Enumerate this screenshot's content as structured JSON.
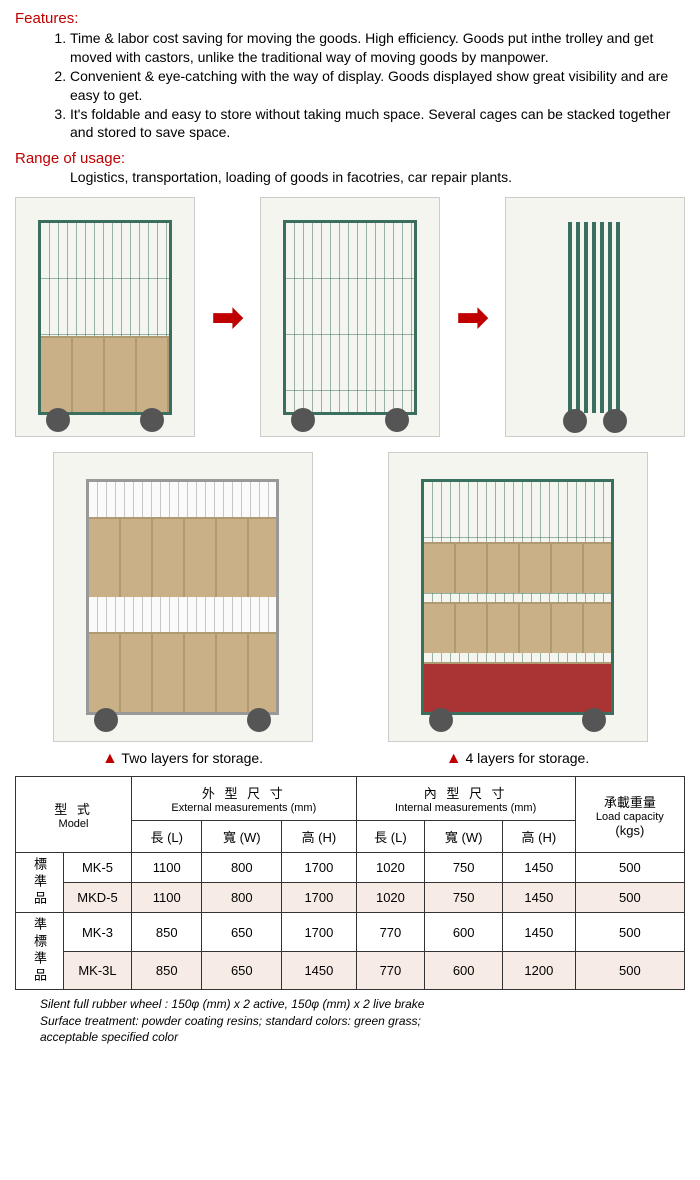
{
  "features": {
    "heading": "Features:",
    "items": [
      "Time & labor cost saving for moving the goods. High efficiency. Goods put inthe trolley and get moved with castors, unlike the traditional way of moving goods by manpower.",
      "Convenient & eye-catching with the way of display. Goods displayed show great visibility and are easy to get.",
      "It's foldable and easy to store without taking much space. Several cages can be stacked together and stored to save space."
    ]
  },
  "range": {
    "heading": "Range of usage:",
    "text": "Logistics, transportation, loading of goods in facotries, car repair plants."
  },
  "captions": {
    "two_layers": "Two layers for storage.",
    "four_layers": "4 layers for storage."
  },
  "table": {
    "colors": {
      "border": "#333333",
      "row_tint": "#f7ece5",
      "heading_red": "#c00000"
    },
    "header": {
      "model_cjk": "型 式",
      "model_en": "Model",
      "external_cjk": "外 型 尺 寸",
      "external_en": "External measurements (mm)",
      "internal_cjk": "內 型 尺 寸",
      "internal_en": "Internal measurements (mm)",
      "load_cjk": "承載重量",
      "load_en": "Load capacity",
      "load_unit": "(kgs)",
      "length": "長 (L)",
      "width": "寬 (W)",
      "height": "高 (H)"
    },
    "row_groups": [
      {
        "label": "標準品",
        "rows": [
          {
            "model": "MK-5",
            "eL": "1100",
            "eW": "800",
            "eH": "1700",
            "iL": "1020",
            "iW": "750",
            "iH": "1450",
            "load": "500",
            "tint": false
          },
          {
            "model": "MKD-5",
            "eL": "1100",
            "eW": "800",
            "eH": "1700",
            "iL": "1020",
            "iW": "750",
            "iH": "1450",
            "load": "500",
            "tint": true
          }
        ]
      },
      {
        "label": "準標準品",
        "rows": [
          {
            "model": "MK-3",
            "eL": "850",
            "eW": "650",
            "eH": "1700",
            "iL": "770",
            "iW": "600",
            "iH": "1450",
            "load": "500",
            "tint": false
          },
          {
            "model": "MK-3L",
            "eL": "850",
            "eW": "650",
            "eH": "1450",
            "iL": "770",
            "iW": "600",
            "iH": "1200",
            "load": "500",
            "tint": true
          }
        ]
      }
    ]
  },
  "footnotes": [
    "Silent full rubber wheel : 150φ (mm) x 2 active, 150φ (mm) x 2 live brake",
    "Surface treatment: powder coating resins; standard colors: green grass;",
    "acceptable specified color"
  ]
}
